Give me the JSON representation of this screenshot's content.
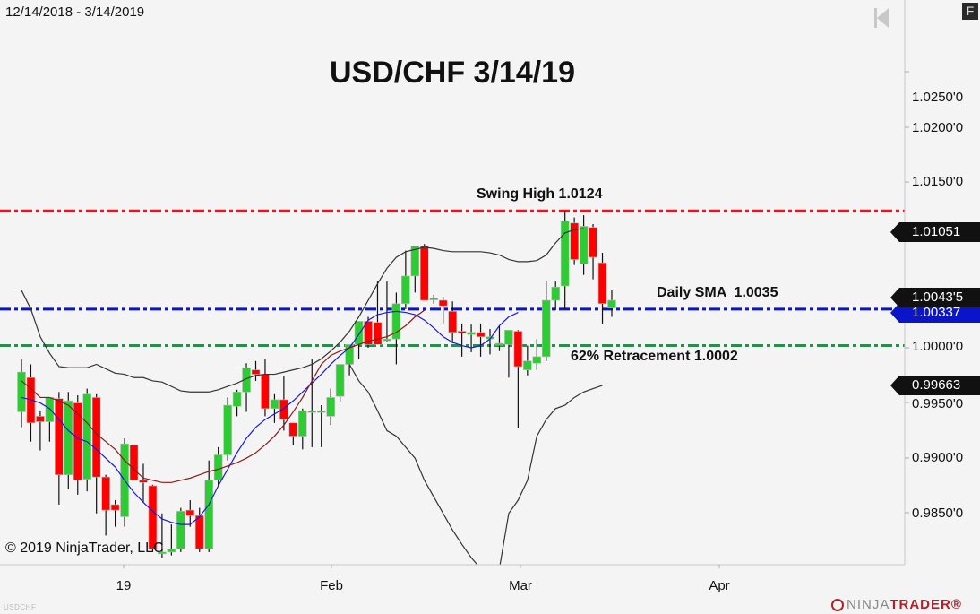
{
  "header": {
    "date_range": "12/14/2018 - 3/14/2019",
    "f_button": "F"
  },
  "chart_data": {
    "type": "candlestick",
    "title": "USD/CHF 3/14/19",
    "symbol": "USDCHF",
    "xlabel": "",
    "ylabel": "",
    "ylim": [
      0.9815,
      1.031
    ],
    "y_ticks": [
      "1.0250'0",
      "1.0200'0",
      "1.0150'0",
      "1.0000'0",
      "0.9950'0",
      "0.9900'0",
      "0.9850'0"
    ],
    "x_ticks": [
      "19",
      "Feb",
      "Mar",
      "Apr"
    ],
    "grid": false,
    "candles": [
      {
        "o": 0.9942,
        "h": 0.999,
        "l": 0.9928,
        "c": 0.9978
      },
      {
        "o": 0.9973,
        "h": 0.9985,
        "l": 0.9915,
        "c": 0.9932
      },
      {
        "o": 0.9938,
        "h": 0.9943,
        "l": 0.9907,
        "c": 0.9933
      },
      {
        "o": 0.9933,
        "h": 0.9955,
        "l": 0.9915,
        "c": 0.9955
      },
      {
        "o": 0.9954,
        "h": 0.996,
        "l": 0.9858,
        "c": 0.9885
      },
      {
        "o": 0.9885,
        "h": 0.996,
        "l": 0.9872,
        "c": 0.9952
      },
      {
        "o": 0.995,
        "h": 0.9957,
        "l": 0.9867,
        "c": 0.988
      },
      {
        "o": 0.9881,
        "h": 0.9963,
        "l": 0.987,
        "c": 0.9958
      },
      {
        "o": 0.9955,
        "h": 0.9958,
        "l": 0.985,
        "c": 0.9883
      },
      {
        "o": 0.9883,
        "h": 0.9885,
        "l": 0.983,
        "c": 0.9853
      },
      {
        "o": 0.9858,
        "h": 0.9862,
        "l": 0.9838,
        "c": 0.9853
      },
      {
        "o": 0.9847,
        "h": 0.9918,
        "l": 0.9838,
        "c": 0.9913
      },
      {
        "o": 0.9912,
        "h": 0.9912,
        "l": 0.988,
        "c": 0.988
      },
      {
        "o": 0.988,
        "h": 0.9895,
        "l": 0.986,
        "c": 0.9878
      },
      {
        "o": 0.9875,
        "h": 0.9876,
        "l": 0.9815,
        "c": 0.9818
      },
      {
        "o": 0.9815,
        "h": 0.985,
        "l": 0.981,
        "c": 0.9815
      },
      {
        "o": 0.9815,
        "h": 0.984,
        "l": 0.9812,
        "c": 0.9818
      },
      {
        "o": 0.9818,
        "h": 0.9855,
        "l": 0.9815,
        "c": 0.9852
      },
      {
        "o": 0.9853,
        "h": 0.9862,
        "l": 0.9838,
        "c": 0.9848
      },
      {
        "o": 0.9848,
        "h": 0.9855,
        "l": 0.9815,
        "c": 0.9818
      },
      {
        "o": 0.9818,
        "h": 0.9898,
        "l": 0.9815,
        "c": 0.988
      },
      {
        "o": 0.988,
        "h": 0.991,
        "l": 0.9875,
        "c": 0.9903
      },
      {
        "o": 0.9903,
        "h": 0.9955,
        "l": 0.9898,
        "c": 0.9948
      },
      {
        "o": 0.9947,
        "h": 0.9962,
        "l": 0.9938,
        "c": 0.996
      },
      {
        "o": 0.996,
        "h": 0.9986,
        "l": 0.9942,
        "c": 0.9982
      },
      {
        "o": 0.998,
        "h": 0.9988,
        "l": 0.997,
        "c": 0.9976
      },
      {
        "o": 0.9976,
        "h": 0.999,
        "l": 0.9938,
        "c": 0.9945
      },
      {
        "o": 0.9945,
        "h": 0.9958,
        "l": 0.9932,
        "c": 0.9953
      },
      {
        "o": 0.9953,
        "h": 0.9974,
        "l": 0.9925,
        "c": 0.9935
      },
      {
        "o": 0.9932,
        "h": 0.9928,
        "l": 0.9912,
        "c": 0.992
      },
      {
        "o": 0.992,
        "h": 0.9945,
        "l": 0.9908,
        "c": 0.9943
      },
      {
        "o": 0.9943,
        "h": 0.999,
        "l": 0.991,
        "c": 0.9943
      },
      {
        "o": 0.9943,
        "h": 0.9948,
        "l": 0.991,
        "c": 0.9943
      },
      {
        "o": 0.9938,
        "h": 0.9963,
        "l": 0.993,
        "c": 0.9955
      },
      {
        "o": 0.9956,
        "h": 0.9985,
        "l": 0.9951,
        "c": 0.9985
      },
      {
        "o": 0.9985,
        "h": 1.0003,
        "l": 0.9975,
        "c": 1.0003
      },
      {
        "o": 1.0003,
        "h": 1.002,
        "l": 0.999,
        "c": 1.0024
      },
      {
        "o": 1.0024,
        "h": 1.0028,
        "l": 1.0,
        "c": 1.0003
      },
      {
        "o": 1.0023,
        "h": 1.006,
        "l": 1.0006,
        "c": 1.0003
      },
      {
        "o": 1.0008,
        "h": 1.006,
        "l": 1.0005,
        "c": 1.0008
      },
      {
        "o": 1.0008,
        "h": 1.005,
        "l": 0.9985,
        "c": 1.004
      },
      {
        "o": 1.004,
        "h": 1.0088,
        "l": 1.0035,
        "c": 1.0065
      },
      {
        "o": 1.0065,
        "h": 1.0092,
        "l": 1.005,
        "c": 1.0092
      },
      {
        "o": 1.0092,
        "h": 1.0094,
        "l": 1.0047,
        "c": 1.0043
      },
      {
        "o": 1.0045,
        "h": 1.0048,
        "l": 1.004,
        "c": 1.0045
      },
      {
        "o": 1.0043,
        "h": 1.0046,
        "l": 1.0022,
        "c": 1.0038
      },
      {
        "o": 1.0033,
        "h": 1.0042,
        "l": 1.0004,
        "c": 1.0014
      },
      {
        "o": 1.0015,
        "h": 1.0022,
        "l": 0.9992,
        "c": 1.0014
      },
      {
        "o": 1.0012,
        "h": 1.0021,
        "l": 0.9996,
        "c": 1.0014
      },
      {
        "o": 1.0014,
        "h": 1.0022,
        "l": 0.9992,
        "c": 1.001
      },
      {
        "o": 1.0008,
        "h": 1.0017,
        "l": 0.9994,
        "c": 1.001
      },
      {
        "o": 1.0004,
        "h": 1.002,
        "l": 0.9997,
        "c": 1.0004
      },
      {
        "o": 1.0003,
        "h": 1.001,
        "l": 0.9973,
        "c": 1.0016
      },
      {
        "o": 1.0015,
        "h": 1.0016,
        "l": 0.9927,
        "c": 0.9983
      },
      {
        "o": 0.998,
        "h": 1.0002,
        "l": 0.9975,
        "c": 0.9988
      },
      {
        "o": 0.9986,
        "h": 1.0008,
        "l": 0.998,
        "c": 0.9992
      },
      {
        "o": 0.9992,
        "h": 1.006,
        "l": 0.9988,
        "c": 1.0043
      },
      {
        "o": 1.0043,
        "h": 1.006,
        "l": 1.0034,
        "c": 1.0055
      },
      {
        "o": 1.0056,
        "h": 1.0124,
        "l": 1.0035,
        "c": 1.0115
      },
      {
        "o": 1.0113,
        "h": 1.0118,
        "l": 1.0075,
        "c": 1.008
      },
      {
        "o": 1.0076,
        "h": 1.012,
        "l": 1.0066,
        "c": 1.011
      },
      {
        "o": 1.0109,
        "h": 1.0112,
        "l": 1.0062,
        "c": 1.0082
      },
      {
        "o": 1.0077,
        "h": 1.0086,
        "l": 1.0022,
        "c": 1.004
      },
      {
        "o": 1.0036,
        "h": 1.0052,
        "l": 1.0028,
        "c": 1.0043
      }
    ],
    "x_start": 24,
    "x_step": 10.46,
    "indicators": {
      "upper_band": [
        1.0052,
        1.0035,
        1.001,
        0.9995,
        0.9983,
        0.9982,
        0.9982,
        0.9982,
        0.9985,
        0.9981,
        0.9977,
        0.9976,
        0.9973,
        0.9973,
        0.997,
        0.9969,
        0.9965,
        0.9961,
        0.996,
        0.996,
        0.996,
        0.9962,
        0.9965,
        0.9968,
        0.9972,
        0.9975,
        0.9976,
        0.9976,
        0.9978,
        0.998,
        0.9982,
        0.9985,
        0.999,
        0.9997,
        1.0005,
        1.0015,
        1.0028,
        1.0043,
        1.0058,
        1.0072,
        1.0082,
        1.0087,
        1.0089,
        1.0091,
        1.009,
        1.0088,
        1.0087,
        1.0087,
        1.0087,
        1.0087,
        1.0086,
        1.0084,
        1.008,
        1.0078,
        1.0078,
        1.0079,
        1.0084,
        1.0095,
        1.0104,
        1.0107,
        1.0108
      ],
      "sma": [
        0.9955,
        0.9953,
        0.995,
        0.9945,
        0.9935,
        0.9925,
        0.9918,
        0.9915,
        0.9908,
        0.99,
        0.9892,
        0.988,
        0.9869,
        0.986,
        0.9852,
        0.9845,
        0.9842,
        0.984,
        0.984,
        0.9847,
        0.9858,
        0.9875,
        0.989,
        0.9905,
        0.9918,
        0.9928,
        0.9935,
        0.994,
        0.9945,
        0.9952,
        0.996,
        0.9968,
        0.9976,
        0.9985,
        0.9993,
        1.0,
        1.0012,
        1.0025,
        1.003,
        1.0032,
        1.0033,
        1.0032,
        1.003,
        1.0025,
        1.0018,
        1.001,
        1.0005,
        1.0002,
        1.0,
        1.0002,
        1.0008,
        1.002,
        1.0028,
        1.0032
      ],
      "ema": [
        0.997,
        0.9963,
        0.9955,
        0.9955,
        0.9952,
        0.9948,
        0.994,
        0.9932,
        0.9922,
        0.9915,
        0.9908,
        0.9898,
        0.989,
        0.9882,
        0.988,
        0.9878,
        0.9878,
        0.988,
        0.9882,
        0.9885,
        0.9888,
        0.989,
        0.9893,
        0.9896,
        0.99,
        0.9905,
        0.9912,
        0.992,
        0.993,
        0.9942,
        0.9955,
        0.997,
        0.9985,
        0.9993,
        0.9997,
        1.0,
        1.0003,
        1.0006,
        1.0008,
        1.001,
        1.0014,
        1.002,
        1.0028,
        1.0034
      ],
      "lower_band": [
        0.9985,
        0.997,
        0.996,
        0.9943,
        0.9925,
        0.992,
        0.991,
        0.99,
        0.988,
        0.9865,
        0.985,
        0.9835,
        0.9822,
        0.981,
        0.98,
        0.98,
        0.98,
        0.985,
        0.9862,
        0.988,
        0.992,
        0.9935,
        0.9945,
        0.9948,
        0.9955,
        0.996,
        0.9963,
        0.9966
      ]
    },
    "horizontal_lines": [
      {
        "name": "Swing High",
        "value": 1.0124,
        "color": "#e8141c",
        "label": "Swing High 1.0124"
      },
      {
        "name": "Daily SMA",
        "value": 1.0035,
        "color": "#0a14c8",
        "label": "Daily SMA  1.0035"
      },
      {
        "name": "62% Retracement",
        "value": 1.0002,
        "color": "#2e8b50",
        "label": "62% Retracement 1.0002"
      }
    ],
    "price_markers": [
      {
        "label": "1.01051",
        "value": 1.01051
      },
      {
        "label": "1.0043'5",
        "value": 1.00435
      },
      {
        "label": "1.00337",
        "value": 1.00337,
        "style": "blue"
      },
      {
        "label": "0.99663",
        "value": 0.99663
      }
    ],
    "colors": {
      "up": "#2ecc33",
      "down": "#ff0000",
      "upper_band": "#333333",
      "sma": "#1a1ad8",
      "ema": "#8b1a1a"
    }
  },
  "annotations": {
    "swing_high": "Swing High 1.0124",
    "daily_sma": "Daily SMA  1.0035",
    "retracement": "62% Retracement 1.0002"
  },
  "footer": {
    "copyright": "© 2019 NinjaTrader, LLC",
    "symbol": "USDCHF",
    "logo_ninja": "NINJA",
    "logo_trader": "TRADER®"
  }
}
